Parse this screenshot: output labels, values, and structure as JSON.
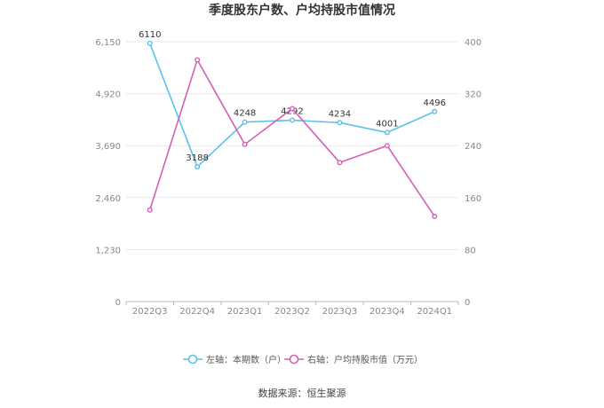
{
  "chart_data": {
    "type": "line",
    "title": "季度股东户数、户均持股市值情况",
    "categories": [
      "2022Q3",
      "2022Q4",
      "2023Q1",
      "2023Q2",
      "2023Q3",
      "2023Q4",
      "2024Q1"
    ],
    "left_axis": {
      "min": 0,
      "max": 6150,
      "ticks": [
        "0",
        "1,230",
        "2,460",
        "3,690",
        "4,920",
        "6,150"
      ]
    },
    "right_axis": {
      "min": 0,
      "max": 400,
      "ticks": [
        "0",
        "80",
        "160",
        "240",
        "320",
        "400"
      ]
    },
    "series": [
      {
        "name": "左轴：本期数（户）",
        "axis": "left",
        "color": "#5bc0eb",
        "values": [
          6110,
          3188,
          4248,
          4292,
          4234,
          4001,
          4496
        ],
        "labels": [
          "6110",
          "3188",
          "4248",
          "4292",
          "4234",
          "4001",
          "4496"
        ]
      },
      {
        "name": "右轴：户均持股市值（万元）",
        "axis": "right",
        "color": "#d45fb5",
        "values": [
          141,
          372,
          242,
          297,
          214,
          240,
          131
        ]
      }
    ],
    "grid": true,
    "legend": "bottom"
  },
  "footer": {
    "source": "数据来源：恒生聚源"
  }
}
